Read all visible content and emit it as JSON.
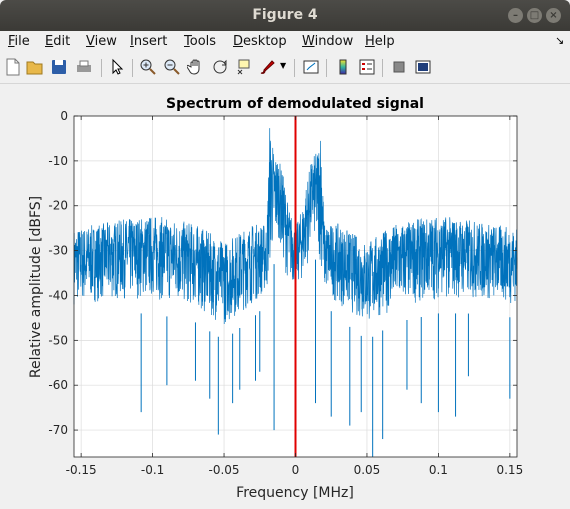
{
  "window": {
    "title": "Figure 4"
  },
  "menu": [
    "File",
    "Edit",
    "View",
    "Insert",
    "Tools",
    "Desktop",
    "Window",
    "Help"
  ],
  "toolbar": {
    "icons": [
      "new-figure-icon",
      "open-file-icon",
      "save-icon",
      "print-icon",
      "select-arrow-icon",
      "zoom-in-icon",
      "zoom-out-icon",
      "pan-hand-icon",
      "rotate-3d-icon",
      "data-cursor-icon",
      "brush-icon",
      "brush-dropdown-icon",
      "link-plot-icon",
      "insert-colorbar-icon",
      "insert-legend-icon",
      "hide-plot-tools-icon",
      "show-plot-tools-icon"
    ]
  },
  "chart_data": {
    "type": "line",
    "title": "Spectrum of demodulated signal",
    "xlabel": "Frequency [MHz]",
    "ylabel": "Relative amplitude [dBFS]",
    "xlim": [
      -0.155,
      0.155
    ],
    "ylim": [
      -76,
      0
    ],
    "xticks": [
      "-0.15",
      "-0.1",
      "-0.05",
      "0",
      "0.05",
      "0.1",
      "0.15"
    ],
    "xtick_values": [
      -0.15,
      -0.1,
      -0.05,
      0,
      0.05,
      0.1,
      0.15
    ],
    "yticks": [
      "0",
      "-10",
      "-20",
      "-30",
      "-40",
      "-50",
      "-60",
      "-70"
    ],
    "ytick_values": [
      0,
      -10,
      -20,
      -30,
      -40,
      -50,
      -60,
      -70
    ],
    "grid": true,
    "series": [
      {
        "color": "#0072bd",
        "envelope_x": [
          -0.155,
          -0.12,
          -0.1,
          -0.07,
          -0.05,
          -0.03,
          -0.02,
          -0.018,
          -0.015,
          -0.012,
          -0.008,
          -0.005,
          0,
          0.005,
          0.008,
          0.012,
          0.015,
          0.018,
          0.02,
          0.03,
          0.05,
          0.07,
          0.1,
          0.12,
          0.155
        ],
        "envelope_upper": [
          -25,
          -23,
          -22,
          -24,
          -28,
          -24,
          -24,
          -1,
          -8,
          -9,
          -14,
          -20,
          -25,
          -20,
          -14,
          -9,
          -8,
          -1,
          -24,
          -24,
          -28,
          -24,
          -22,
          -23,
          -25
        ],
        "envelope_lower": [
          -45,
          -44,
          -44,
          -46,
          -50,
          -45,
          -42,
          -40,
          -33,
          -30,
          -37,
          -40,
          -40,
          -40,
          -37,
          -30,
          -33,
          -40,
          -42,
          -45,
          -50,
          -46,
          -44,
          -44,
          -45
        ],
        "dips": [
          [
            -0.108,
            -66
          ],
          [
            -0.09,
            -60
          ],
          [
            -0.07,
            -59
          ],
          [
            -0.06,
            -63
          ],
          [
            -0.054,
            -71
          ],
          [
            -0.044,
            -64
          ],
          [
            -0.039,
            -61
          ],
          [
            -0.028,
            -59
          ],
          [
            -0.025,
            -57
          ],
          [
            -0.015,
            -70
          ],
          [
            0.014,
            -64
          ],
          [
            0.025,
            -67
          ],
          [
            0.038,
            -69
          ],
          [
            0.046,
            -66
          ],
          [
            0.054,
            -76
          ],
          [
            0.061,
            -72
          ],
          [
            0.078,
            -61
          ],
          [
            0.088,
            -64
          ],
          [
            0.1,
            -66
          ],
          [
            0.112,
            -67
          ],
          [
            0.121,
            -58
          ],
          [
            0.15,
            -63
          ]
        ]
      },
      {
        "color": "#e00000",
        "x": [
          0,
          0
        ],
        "y": [
          0,
          -76
        ]
      }
    ]
  }
}
